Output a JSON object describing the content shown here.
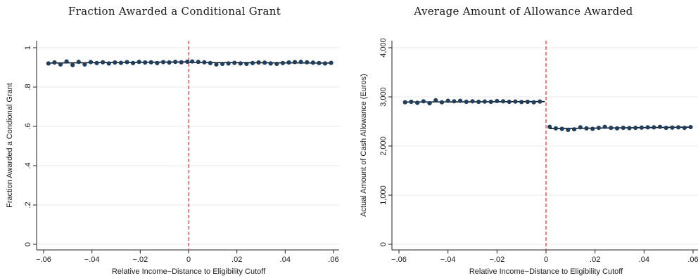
{
  "chart_data": [
    {
      "type": "scatter",
      "title": "Fraction Awarded a Conditional Grant",
      "xlabel": "Relative Income−Distance to Eligibility Cutoff",
      "ylabel": "Fraction Awarded a Condional Grant",
      "xlim": [
        -0.06,
        0.06
      ],
      "ylim": [
        0,
        1
      ],
      "xticks": [
        -0.06,
        -0.04,
        -0.02,
        0,
        0.02,
        0.04,
        0.06
      ],
      "xtick_labels": [
        "−.06",
        "−.04",
        "−.02",
        "0",
        ".02",
        ".04",
        ".06"
      ],
      "yticks": [
        0,
        0.2,
        0.4,
        0.6,
        0.8,
        1
      ],
      "ytick_labels": [
        "0",
        ".2",
        ".4",
        ".6",
        ".8",
        "1"
      ],
      "cutoff": 0,
      "colors": {
        "points": "#1f3f5e",
        "fit": "#111111",
        "cutoff": "#e8312b",
        "grid": "#eaeaea"
      },
      "x": [
        -0.058,
        -0.0555,
        -0.053,
        -0.0505,
        -0.048,
        -0.0455,
        -0.043,
        -0.0405,
        -0.038,
        -0.0355,
        -0.033,
        -0.0305,
        -0.028,
        -0.0255,
        -0.023,
        -0.0205,
        -0.018,
        -0.0155,
        -0.013,
        -0.0105,
        -0.008,
        -0.0055,
        -0.003,
        -0.0005,
        0.0015,
        0.004,
        0.0065,
        0.009,
        0.0115,
        0.014,
        0.0165,
        0.019,
        0.0215,
        0.024,
        0.0265,
        0.029,
        0.0315,
        0.034,
        0.0365,
        0.039,
        0.0415,
        0.044,
        0.0465,
        0.049,
        0.0515,
        0.054,
        0.0565,
        0.059
      ],
      "y": [
        0.92,
        0.925,
        0.915,
        0.93,
        0.912,
        0.928,
        0.915,
        0.927,
        0.922,
        0.926,
        0.92,
        0.925,
        0.923,
        0.927,
        0.922,
        0.928,
        0.925,
        0.926,
        0.922,
        0.927,
        0.925,
        0.928,
        0.926,
        0.929,
        0.93,
        0.928,
        0.926,
        0.922,
        0.915,
        0.918,
        0.92,
        0.923,
        0.92,
        0.918,
        0.922,
        0.925,
        0.924,
        0.92,
        0.918,
        0.922,
        0.925,
        0.927,
        0.928,
        0.926,
        0.924,
        0.922,
        0.92,
        0.923
      ],
      "fit": [
        {
          "x0": -0.058,
          "y0": 0.922,
          "x1": 0,
          "y1": 0.928
        },
        {
          "x0": 0,
          "y0": 0.925,
          "x1": 0.059,
          "y1": 0.922
        }
      ]
    },
    {
      "type": "scatter",
      "title": "Average Amount of Allowance Awarded",
      "xlabel": "Relative Income−Distance to Eligibility Cutoff",
      "ylabel": "Actual Amount of Cash Allowance (Euros)",
      "xlim": [
        -0.06,
        0.06
      ],
      "ylim": [
        0,
        4000
      ],
      "xticks": [
        -0.06,
        -0.04,
        -0.02,
        0,
        0.02,
        0.04,
        0.06
      ],
      "xtick_labels": [
        "−.06",
        "−.04",
        "−.02",
        "0",
        ".02",
        ".04",
        ".06"
      ],
      "yticks": [
        0,
        1000,
        2000,
        3000,
        4000
      ],
      "ytick_labels": [
        "0",
        "1,000",
        "2,000",
        "3,000",
        "4,000"
      ],
      "cutoff": 0,
      "colors": {
        "points": "#1f3f5e",
        "fit": "#111111",
        "cutoff": "#e8312b",
        "grid": "#eaeaea"
      },
      "x": [
        -0.0575,
        -0.055,
        -0.0525,
        -0.05,
        -0.0475,
        -0.045,
        -0.0425,
        -0.04,
        -0.0375,
        -0.035,
        -0.0325,
        -0.03,
        -0.0275,
        -0.025,
        -0.0225,
        -0.02,
        -0.0175,
        -0.015,
        -0.0125,
        -0.01,
        -0.0075,
        -0.005,
        -0.0025,
        0.0015,
        0.004,
        0.0065,
        0.009,
        0.0115,
        0.014,
        0.0165,
        0.019,
        0.0215,
        0.024,
        0.0265,
        0.029,
        0.0315,
        0.034,
        0.0365,
        0.039,
        0.0415,
        0.044,
        0.0465,
        0.049,
        0.0515,
        0.054,
        0.0565,
        0.059
      ],
      "y": [
        2890,
        2900,
        2880,
        2910,
        2870,
        2930,
        2890,
        2920,
        2910,
        2920,
        2900,
        2910,
        2900,
        2905,
        2900,
        2915,
        2910,
        2900,
        2905,
        2895,
        2900,
        2890,
        2905,
        2390,
        2360,
        2350,
        2330,
        2340,
        2380,
        2360,
        2350,
        2370,
        2390,
        2370,
        2360,
        2370,
        2365,
        2370,
        2375,
        2380,
        2380,
        2390,
        2370,
        2375,
        2380,
        2370,
        2385
      ],
      "fit": [
        {
          "x0": -0.0575,
          "y0": 2895,
          "x1": -0.0005,
          "y1": 2905
        },
        {
          "x0": 0.0015,
          "y0": 2355,
          "x1": 0.059,
          "y1": 2385
        }
      ]
    }
  ]
}
